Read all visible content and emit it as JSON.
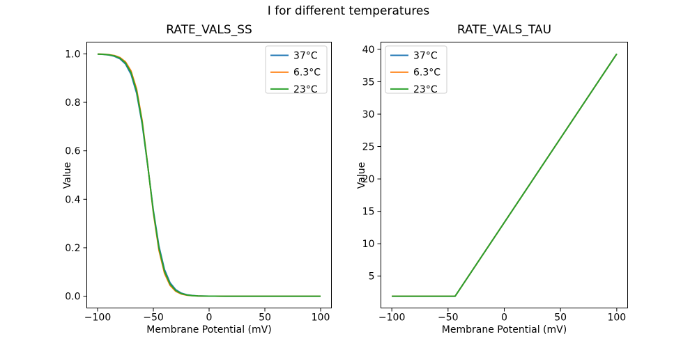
{
  "figure": {
    "suptitle": "I for different temperatures",
    "background": "#ffffff",
    "text_color": "#000000"
  },
  "chart_data": [
    {
      "type": "line",
      "title": "RATE_VALS_SS",
      "xlabel": "Membrane Potential (mV)",
      "ylabel": "Value",
      "xlim": [
        -110,
        110
      ],
      "ylim": [
        -0.05,
        1.05
      ],
      "xticks": [
        -100,
        -50,
        0,
        50,
        100
      ],
      "xtick_labels": [
        "−100",
        "−50",
        "0",
        "50",
        "100"
      ],
      "yticks": [
        0.0,
        0.2,
        0.4,
        0.6,
        0.8,
        1.0
      ],
      "ytick_labels": [
        "0.0",
        "0.2",
        "0.4",
        "0.6",
        "0.8",
        "1.0"
      ],
      "grid": false,
      "legend_loc": "upper-right",
      "legend_frame_color": "#cccccc",
      "series": [
        {
          "name": "37°C",
          "color": "#1f77b4",
          "x": [
            -100,
            -95,
            -90,
            -85,
            -80,
            -75,
            -70,
            -65,
            -60,
            -55,
            -50,
            -45,
            -40,
            -35,
            -30,
            -25,
            -20,
            -15,
            -10,
            -5,
            0,
            5,
            10,
            15,
            20,
            25,
            30,
            35,
            40,
            45,
            50,
            55,
            60,
            65,
            70,
            75,
            80,
            85,
            90,
            95,
            100
          ],
          "y": [
            0.999,
            0.9978,
            0.9954,
            0.9903,
            0.9798,
            0.9583,
            0.9158,
            0.8378,
            0.7101,
            0.5372,
            0.355,
            0.207,
            0.1101,
            0.0554,
            0.0271,
            0.013,
            0.0062,
            0.003,
            0.0014,
            0.0007,
            0.0003,
            0.0002,
            0.0001,
            0,
            0,
            0,
            0,
            0,
            0,
            0,
            0,
            0,
            0,
            0,
            0,
            0,
            0,
            0,
            0,
            0,
            0
          ]
        },
        {
          "name": "6.3°C",
          "color": "#ff7f0e",
          "x": [
            -100,
            -95,
            -90,
            -85,
            -80,
            -75,
            -70,
            -65,
            -60,
            -55,
            -50,
            -45,
            -40,
            -35,
            -30,
            -25,
            -20,
            -15,
            -10,
            -5,
            0,
            5,
            10,
            15,
            20,
            25,
            30,
            35,
            40,
            45,
            50,
            55,
            60,
            65,
            70,
            75,
            80,
            85,
            90,
            95,
            100
          ],
          "y": [
            0.9994,
            0.9987,
            0.997,
            0.9933,
            0.9851,
            0.9673,
            0.9296,
            0.855,
            0.7247,
            0.5402,
            0.3441,
            0.1897,
            0.0946,
            0.0446,
            0.0204,
            0.0092,
            0.0041,
            0.0019,
            0.0008,
            0.0004,
            0.0002,
            0.0001,
            0,
            0,
            0,
            0,
            0,
            0,
            0,
            0,
            0,
            0,
            0,
            0,
            0,
            0,
            0,
            0,
            0,
            0,
            0
          ]
        },
        {
          "name": "23°C",
          "color": "#2ca02c",
          "x": [
            -100,
            -95,
            -90,
            -85,
            -80,
            -75,
            -70,
            -65,
            -60,
            -55,
            -50,
            -45,
            -40,
            -35,
            -30,
            -25,
            -20,
            -15,
            -10,
            -5,
            0,
            5,
            10,
            15,
            20,
            25,
            30,
            35,
            40,
            45,
            50,
            55,
            60,
            65,
            70,
            75,
            80,
            85,
            90,
            95,
            100
          ],
          "y": [
            0.9992,
            0.9983,
            0.9963,
            0.9919,
            0.9825,
            0.9629,
            0.9228,
            0.8462,
            0.7171,
            0.5387,
            0.3497,
            0.1986,
            0.1024,
            0.0499,
            0.0236,
            0.011,
            0.0051,
            0.0024,
            0.0011,
            0.0005,
            0.0002,
            0.0001,
            0,
            0,
            0,
            0,
            0,
            0,
            0,
            0,
            0,
            0,
            0,
            0,
            0,
            0,
            0,
            0,
            0,
            0,
            0
          ]
        }
      ]
    },
    {
      "type": "line",
      "title": "RATE_VALS_TAU",
      "xlabel": "Membrane Potential (mV)",
      "ylabel": "Value",
      "xlim": [
        -110,
        110
      ],
      "ylim": [
        0.03,
        41.17
      ],
      "xticks": [
        -100,
        -50,
        0,
        50,
        100
      ],
      "xtick_labels": [
        "−100",
        "−50",
        "0",
        "50",
        "100"
      ],
      "yticks": [
        5,
        10,
        15,
        20,
        25,
        30,
        35,
        40
      ],
      "ytick_labels": [
        "5",
        "10",
        "15",
        "20",
        "25",
        "30",
        "35",
        "40"
      ],
      "grid": false,
      "legend_loc": "upper-left",
      "legend_frame_color": "#cccccc",
      "series": [
        {
          "name": "37°C",
          "color": "#1f77b4",
          "x": [
            -100,
            -43.7,
            100
          ],
          "y": [
            1.9,
            1.9,
            39.3
          ]
        },
        {
          "name": "6.3°C",
          "color": "#ff7f0e",
          "x": [
            -100,
            -43.7,
            100
          ],
          "y": [
            1.9,
            1.9,
            39.3
          ]
        },
        {
          "name": "23°C",
          "color": "#2ca02c",
          "x": [
            -100,
            -43.7,
            100
          ],
          "y": [
            1.9,
            1.9,
            39.3
          ]
        }
      ]
    }
  ]
}
